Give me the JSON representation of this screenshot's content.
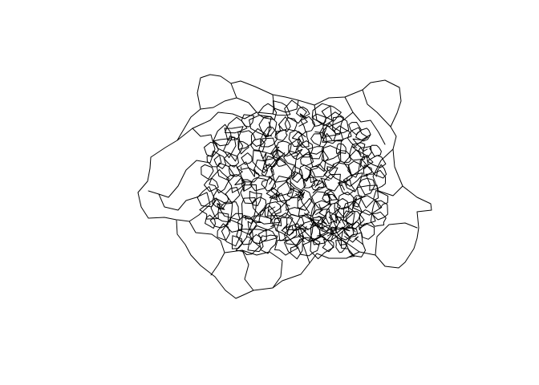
{
  "map": {
    "background_color": "#ffffff",
    "line_color": "#000000",
    "fill_color": "#ffffff",
    "type": "choropleth-outline",
    "labels_visible": false
  }
}
